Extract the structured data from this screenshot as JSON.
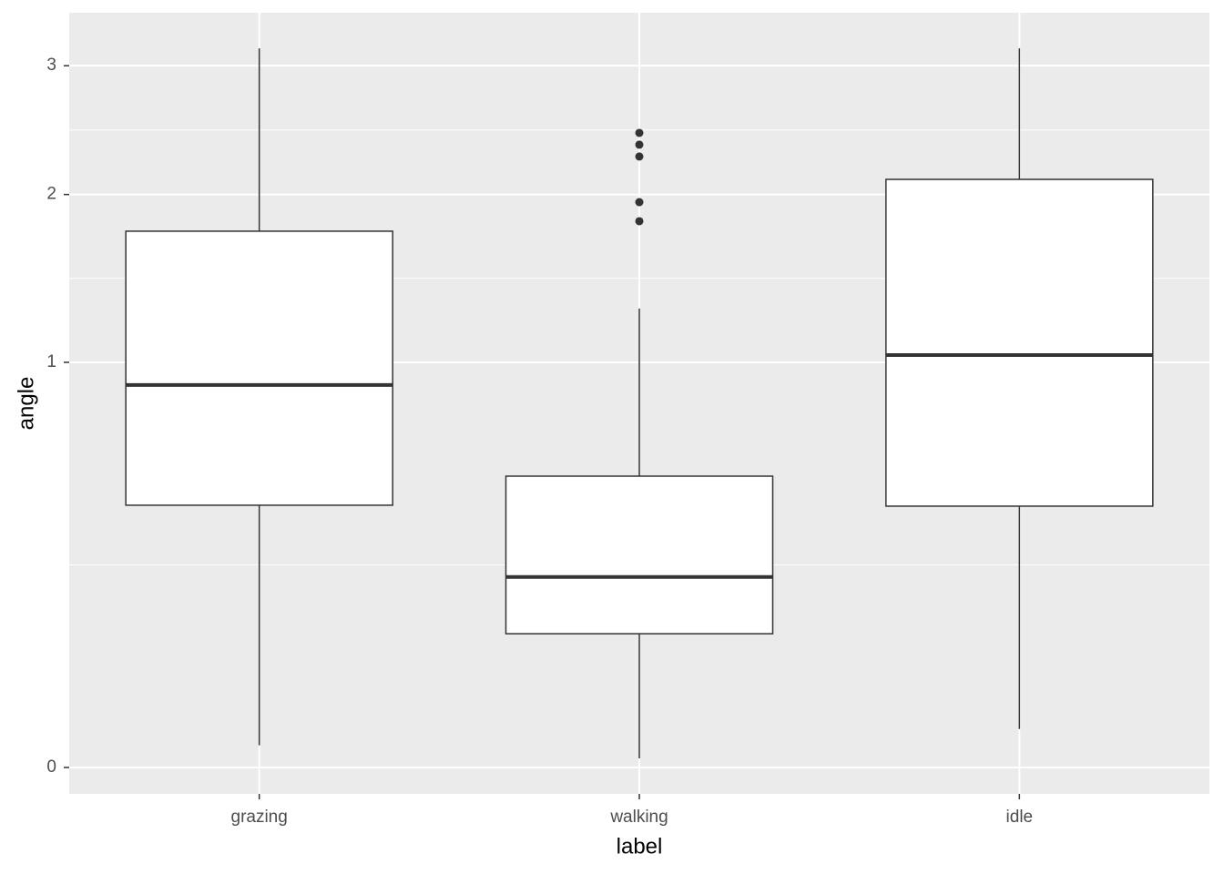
{
  "chart_data": {
    "type": "boxplot",
    "x_label": "label",
    "y_label": "angle",
    "categories": [
      "grazing",
      "walking",
      "idle"
    ],
    "boxes": [
      {
        "min": 0.003,
        "q1": 0.419,
        "median": 0.891,
        "q3": 1.752,
        "max": 3.15,
        "outliers": []
      },
      {
        "min": 0.0005,
        "q1": 0.109,
        "median": 0.221,
        "q3": 0.517,
        "max": 1.283,
        "outliers": [
          2.453,
          2.363,
          2.274,
          1.947,
          1.818
        ]
      },
      {
        "min": 0.009,
        "q1": 0.416,
        "median": 1.036,
        "q3": 2.107,
        "max": 3.15,
        "outliers": []
      }
    ],
    "y_scale": "sqrt",
    "ylim": [
      0,
      3.47
    ],
    "yticks": [
      0,
      1,
      2,
      3
    ],
    "grid": true,
    "box_fill": "#ffffff",
    "line_color": "#333333"
  }
}
